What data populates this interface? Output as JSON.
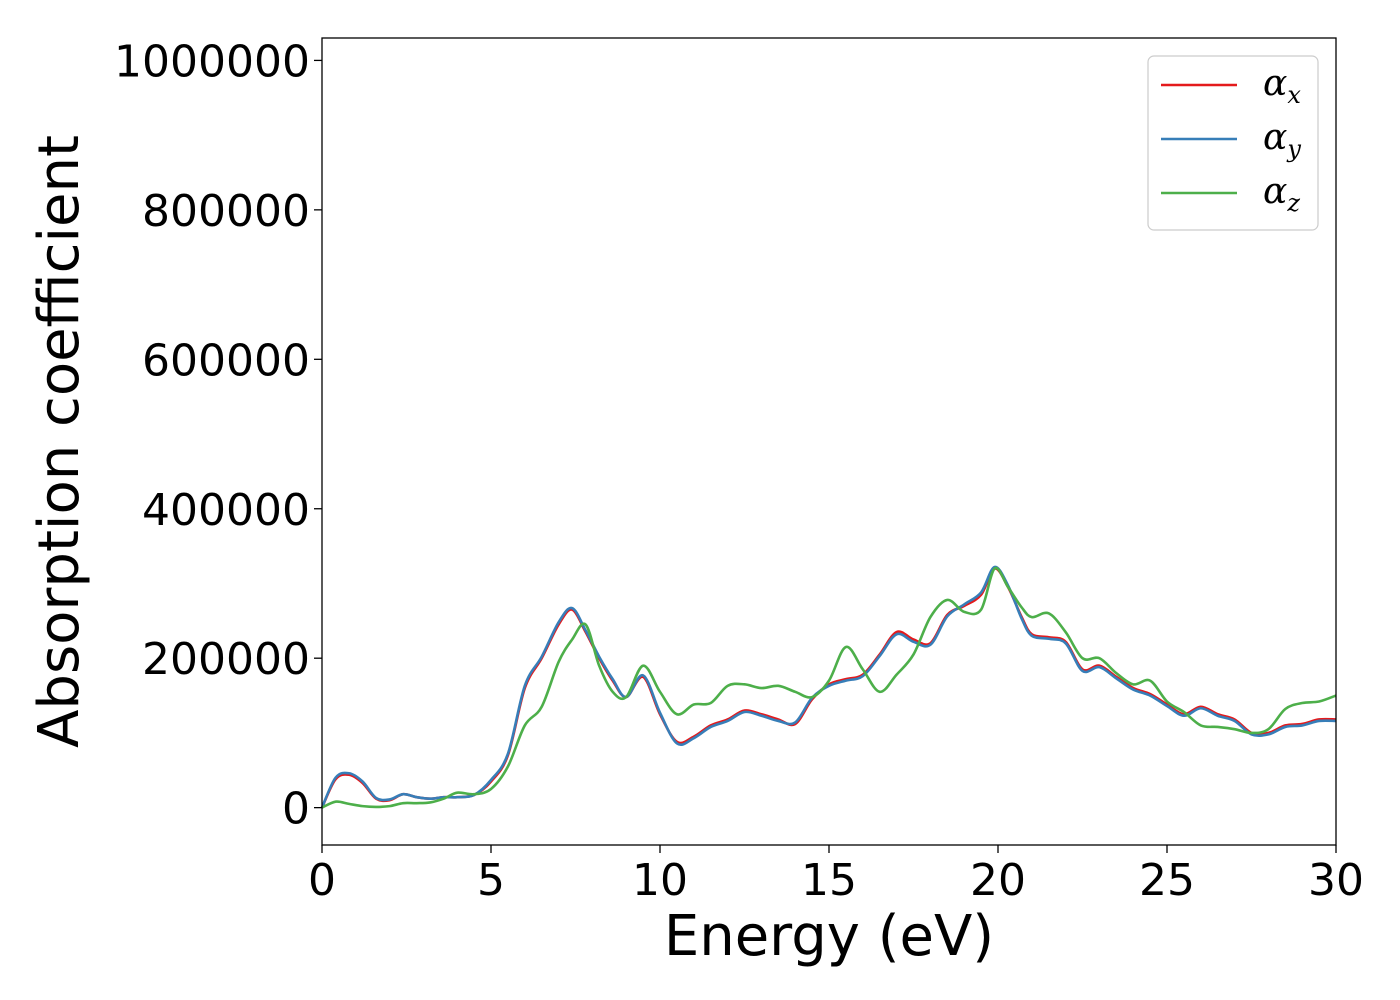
{
  "chart_data": {
    "type": "line",
    "title": "",
    "xlabel": "Energy (eV)",
    "ylabel": "Absorption coefficient",
    "xlim": [
      0,
      30
    ],
    "ylim": [
      -50000,
      1030000
    ],
    "xticks": [
      0,
      5,
      10,
      15,
      20,
      25,
      30
    ],
    "xtick_labels": [
      "0",
      "5",
      "10",
      "15",
      "20",
      "25",
      "30"
    ],
    "yticks": [
      0,
      200000,
      400000,
      600000,
      800000,
      1000000
    ],
    "ytick_labels": [
      "0",
      "200000",
      "400000",
      "600000",
      "800000",
      "1000000"
    ],
    "grid": false,
    "legend_position": "top-right",
    "series": [
      {
        "name": "α",
        "subscript": "x",
        "color": "#e41a1c",
        "x": [
          0,
          0.4,
          0.8,
          1.2,
          1.6,
          2.0,
          2.4,
          2.8,
          3.2,
          3.6,
          4.0,
          4.5,
          5.0,
          5.5,
          6.0,
          6.5,
          7.0,
          7.4,
          7.8,
          8.2,
          8.6,
          9.0,
          9.5,
          10.0,
          10.5,
          11.0,
          11.5,
          12.0,
          12.5,
          13.0,
          13.5,
          14.0,
          14.5,
          15.0,
          15.5,
          16.0,
          16.5,
          17.0,
          17.5,
          18.0,
          18.5,
          19.0,
          19.5,
          19.9,
          20.3,
          20.7,
          21.0,
          21.5,
          22.0,
          22.5,
          23.0,
          23.5,
          24.0,
          24.5,
          25.0,
          25.5,
          26.0,
          26.5,
          27.0,
          27.5,
          28.0,
          28.5,
          29.0,
          29.5,
          30.0
        ],
        "y": [
          0,
          38000,
          44000,
          33000,
          12000,
          10000,
          18000,
          14000,
          12000,
          14000,
          14000,
          17000,
          35000,
          70000,
          160000,
          200000,
          245000,
          265000,
          235000,
          200000,
          170000,
          148000,
          175000,
          125000,
          88000,
          95000,
          110000,
          118000,
          130000,
          125000,
          118000,
          112000,
          145000,
          165000,
          172000,
          178000,
          205000,
          235000,
          225000,
          220000,
          258000,
          270000,
          285000,
          320000,
          295000,
          255000,
          232000,
          228000,
          222000,
          185000,
          190000,
          175000,
          160000,
          152000,
          138000,
          125000,
          135000,
          125000,
          118000,
          100000,
          100000,
          110000,
          112000,
          118000,
          118000
        ]
      },
      {
        "name": "α",
        "subscript": "y",
        "color": "#377eb8",
        "x": [
          0,
          0.4,
          0.8,
          1.2,
          1.6,
          2.0,
          2.4,
          2.8,
          3.2,
          3.6,
          4.0,
          4.5,
          5.0,
          5.5,
          6.0,
          6.5,
          7.0,
          7.4,
          7.8,
          8.2,
          8.6,
          9.0,
          9.5,
          10.0,
          10.5,
          11.0,
          11.5,
          12.0,
          12.5,
          13.0,
          13.5,
          14.0,
          14.5,
          15.0,
          15.5,
          16.0,
          16.5,
          17.0,
          17.5,
          18.0,
          18.5,
          19.0,
          19.5,
          19.9,
          20.3,
          20.7,
          21.0,
          21.5,
          22.0,
          22.5,
          23.0,
          23.5,
          24.0,
          24.5,
          25.0,
          25.5,
          26.0,
          26.5,
          27.0,
          27.5,
          28.0,
          28.5,
          29.0,
          29.5,
          30.0
        ],
        "y": [
          0,
          40000,
          46000,
          35000,
          13000,
          11000,
          18000,
          14000,
          12000,
          14000,
          14000,
          17000,
          37000,
          72000,
          163000,
          202000,
          248000,
          267000,
          237000,
          202000,
          172000,
          148000,
          177000,
          127000,
          86000,
          93000,
          108000,
          116000,
          128000,
          123000,
          116000,
          114000,
          147000,
          163000,
          170000,
          176000,
          203000,
          232000,
          222000,
          218000,
          256000,
          272000,
          288000,
          322000,
          297000,
          253000,
          230000,
          226000,
          220000,
          183000,
          188000,
          173000,
          158000,
          150000,
          136000,
          123000,
          133000,
          123000,
          116000,
          98000,
          98000,
          108000,
          110000,
          116000,
          116000
        ]
      },
      {
        "name": "α",
        "subscript": "z",
        "color": "#4daf4a",
        "x": [
          0,
          0.4,
          0.8,
          1.2,
          1.6,
          2.0,
          2.4,
          2.8,
          3.2,
          3.6,
          4.0,
          4.5,
          5.0,
          5.5,
          6.0,
          6.5,
          7.0,
          7.4,
          7.8,
          8.2,
          8.6,
          9.0,
          9.5,
          10.0,
          10.5,
          11.0,
          11.5,
          12.0,
          12.5,
          13.0,
          13.5,
          14.0,
          14.5,
          15.0,
          15.5,
          16.0,
          16.5,
          17.0,
          17.5,
          18.0,
          18.5,
          19.0,
          19.5,
          19.9,
          20.3,
          20.7,
          21.0,
          21.5,
          22.0,
          22.5,
          23.0,
          23.5,
          24.0,
          24.5,
          25.0,
          25.5,
          26.0,
          26.5,
          27.0,
          27.5,
          28.0,
          28.5,
          29.0,
          29.5,
          30.0
        ],
        "y": [
          0,
          8000,
          5000,
          2000,
          1000,
          2000,
          6000,
          6000,
          7000,
          12000,
          20000,
          18000,
          25000,
          55000,
          110000,
          135000,
          195000,
          225000,
          245000,
          190000,
          155000,
          148000,
          190000,
          155000,
          125000,
          138000,
          140000,
          163000,
          165000,
          160000,
          163000,
          155000,
          148000,
          170000,
          215000,
          185000,
          155000,
          178000,
          205000,
          255000,
          278000,
          262000,
          265000,
          320000,
          295000,
          268000,
          255000,
          260000,
          235000,
          200000,
          200000,
          180000,
          165000,
          170000,
          142000,
          128000,
          110000,
          108000,
          105000,
          100000,
          105000,
          132000,
          140000,
          142000,
          150000
        ]
      }
    ]
  }
}
